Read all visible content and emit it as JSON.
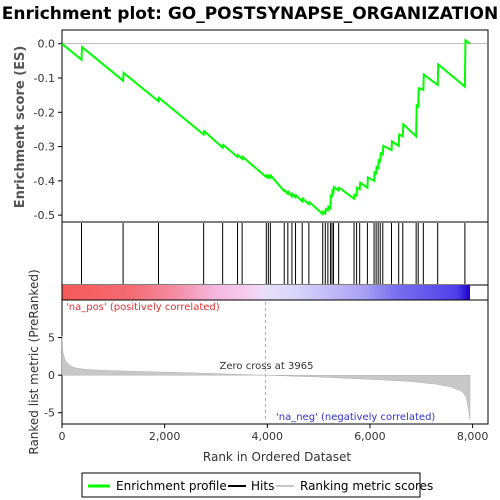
{
  "chart_data": {
    "type": "line",
    "title": "Enrichment plot: GO_POSTSYNAPSE_ORGANIZATION",
    "xlabel": "Rank in Ordered Dataset",
    "ylabel_top": "Enrichment score (ES)",
    "ylabel_bottom": "Ranked list metric (PreRanked)",
    "x_ticks": [
      "0",
      "2,000",
      "4,000",
      "6,000",
      "8,000"
    ],
    "x_tick_values": [
      0,
      2000,
      4000,
      6000,
      8000
    ],
    "xlim": [
      0,
      8300
    ],
    "es_ylim": [
      -0.52,
      0.04
    ],
    "es_y_ticks": [
      "0.0",
      "-0.1",
      "-0.2",
      "-0.3",
      "-0.4",
      "-0.5"
    ],
    "es_y_tick_values": [
      0.0,
      -0.1,
      -0.2,
      -0.3,
      -0.4,
      -0.5
    ],
    "metric_ylim": [
      -6.5,
      10
    ],
    "metric_y_ticks": [
      "5",
      "0",
      "-5"
    ],
    "metric_y_tick_values": [
      5,
      0,
      -5
    ],
    "zero_cross_label": "Zero cross at 3965",
    "zero_cross": 3965,
    "pos_label": "'na_pos' (positively correlated)",
    "neg_label": "'na_neg' (negatively correlated)",
    "series": [
      {
        "name": "Enrichment profile",
        "color": "#00ff00",
        "x": [
          0,
          380,
          390,
          1190,
          1200,
          1880,
          1890,
          2760,
          2770,
          3130,
          3140,
          3420,
          3430,
          3510,
          3520,
          3980,
          3990,
          4020,
          4030,
          4060,
          4070,
          4330,
          4340,
          4400,
          4410,
          4480,
          4490,
          4550,
          4560,
          4680,
          4690,
          4810,
          4820,
          5080,
          5090,
          5130,
          5140,
          5180,
          5190,
          5230,
          5240,
          5260,
          5270,
          5290,
          5300,
          5390,
          5400,
          5690,
          5700,
          5740,
          5750,
          5800,
          5810,
          5950,
          5960,
          6080,
          6090,
          6120,
          6130,
          6160,
          6170,
          6200,
          6210,
          6250,
          6260,
          6420,
          6430,
          6560,
          6570,
          6640,
          6650,
          6900,
          6910,
          6940,
          6950,
          7040,
          7050,
          7320,
          7330,
          7850,
          7860,
          7950
        ],
        "y": [
          0.0,
          -0.047,
          -0.01,
          -0.108,
          -0.085,
          -0.168,
          -0.158,
          -0.265,
          -0.255,
          -0.303,
          -0.295,
          -0.33,
          -0.325,
          -0.336,
          -0.33,
          -0.389,
          -0.385,
          -0.39,
          -0.385,
          -0.39,
          -0.385,
          -0.43,
          -0.428,
          -0.438,
          -0.432,
          -0.445,
          -0.438,
          -0.448,
          -0.442,
          -0.46,
          -0.452,
          -0.468,
          -0.462,
          -0.497,
          -0.49,
          -0.495,
          -0.482,
          -0.486,
          -0.475,
          -0.48,
          -0.443,
          -0.445,
          -0.428,
          -0.432,
          -0.418,
          -0.428,
          -0.42,
          -0.452,
          -0.44,
          -0.443,
          -0.42,
          -0.425,
          -0.405,
          -0.42,
          -0.39,
          -0.4,
          -0.375,
          -0.378,
          -0.36,
          -0.363,
          -0.34,
          -0.343,
          -0.32,
          -0.323,
          -0.298,
          -0.31,
          -0.285,
          -0.298,
          -0.265,
          -0.27,
          -0.235,
          -0.27,
          -0.18,
          -0.183,
          -0.13,
          -0.135,
          -0.09,
          -0.12,
          -0.06,
          -0.125,
          0.01,
          0.0
        ]
      }
    ],
    "hits": [
      380,
      1190,
      1880,
      2760,
      3130,
      3420,
      3510,
      3980,
      4020,
      4060,
      4330,
      4400,
      4480,
      4550,
      4680,
      4810,
      5080,
      5130,
      5180,
      5230,
      5260,
      5290,
      5390,
      5690,
      5740,
      5800,
      5950,
      6080,
      6120,
      6160,
      6200,
      6250,
      6420,
      6560,
      6640,
      6900,
      6940,
      7040,
      7320,
      7850
    ],
    "color_bar_stops": [
      {
        "x": 0,
        "color": "#f55a5a"
      },
      {
        "x": 1300,
        "color": "#f46a72"
      },
      {
        "x": 2150,
        "color": "#f48aa0"
      },
      {
        "x": 3000,
        "color": "#f5b8e0"
      },
      {
        "x": 3700,
        "color": "#f5d0f0"
      },
      {
        "x": 3965,
        "color": "#e8e0fa"
      },
      {
        "x": 4600,
        "color": "#d8d4fa"
      },
      {
        "x": 5900,
        "color": "#a8a0f4"
      },
      {
        "x": 6500,
        "color": "#7a6ff0"
      },
      {
        "x": 7700,
        "color": "#4e3fe8"
      },
      {
        "x": 7950,
        "color": "#1a00c8"
      }
    ],
    "metric_profile": {
      "x": [
        0,
        20,
        60,
        120,
        200,
        300,
        500,
        800,
        1200,
        2000,
        3000,
        3965,
        5000,
        6000,
        6800,
        7300,
        7600,
        7800,
        7880,
        7920,
        7950
      ],
      "y": [
        5.2,
        3.0,
        2.0,
        1.5,
        1.1,
        0.9,
        0.75,
        0.65,
        0.55,
        0.4,
        0.2,
        0.0,
        -0.25,
        -0.55,
        -0.85,
        -1.2,
        -1.6,
        -2.2,
        -3.0,
        -4.5,
        -6.0
      ]
    },
    "legend": [
      {
        "label": "Enrichment profile",
        "color": "#00ff00"
      },
      {
        "label": "Hits",
        "color": "#000000"
      },
      {
        "label": "Ranking metric scores",
        "color": "#c8c8c8"
      }
    ]
  }
}
